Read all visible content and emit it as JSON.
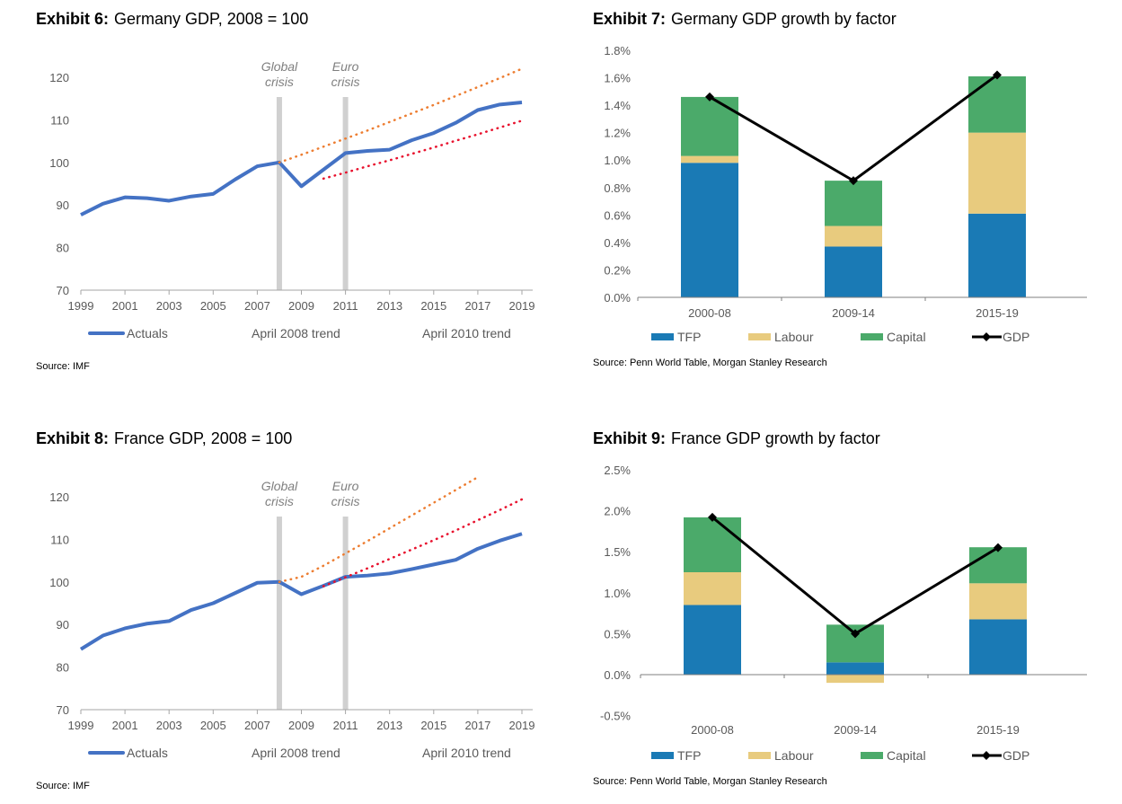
{
  "chart_data": [
    {
      "type": "line",
      "exhibit": "Exhibit 6:",
      "title": "Germany GDP, 2008 = 100",
      "ylim": [
        70,
        125
      ],
      "yticks": [
        70,
        80,
        90,
        100,
        110,
        120
      ],
      "xticks": [
        1999,
        2001,
        2003,
        2005,
        2007,
        2009,
        2011,
        2013,
        2015,
        2017,
        2019
      ],
      "annotations": [
        {
          "lines": [
            "Global",
            "crisis"
          ],
          "x": 2008
        },
        {
          "lines": [
            "Euro",
            "crisis"
          ],
          "x": 2011
        }
      ],
      "series": [
        {
          "name": "Actuals",
          "color": "#4472C4",
          "style": "solid",
          "x": [
            1999,
            2000,
            2001,
            2002,
            2003,
            2004,
            2005,
            2006,
            2007,
            2008,
            2009,
            2010,
            2011,
            2012,
            2013,
            2014,
            2015,
            2016,
            2017,
            2018,
            2019
          ],
          "y": [
            87.7,
            90.3,
            91.8,
            91.6,
            91.0,
            92.0,
            92.6,
            96.0,
            99.1,
            100,
            94.4,
            98.3,
            102.2,
            102.7,
            103.0,
            105.2,
            106.9,
            109.3,
            112.3,
            113.6,
            114.1
          ]
        },
        {
          "name": "April 2008 trend",
          "color": "#ED7D31",
          "style": "dotted",
          "x": [
            2008,
            2009,
            2010,
            2011,
            2012,
            2013,
            2014,
            2015,
            2016,
            2017,
            2018,
            2019
          ],
          "y": [
            100,
            101.8,
            103.7,
            105.6,
            107.5,
            109.5,
            111.5,
            113.5,
            115.6,
            117.7,
            119.8,
            122.0
          ]
        },
        {
          "name": "April 2010 trend",
          "color": "#E8112D",
          "style": "dotted",
          "x": [
            2010,
            2011,
            2012,
            2013,
            2014,
            2015,
            2016,
            2017,
            2018,
            2019
          ],
          "y": [
            96.2,
            97.6,
            99.1,
            100.5,
            102.0,
            103.5,
            105.1,
            106.6,
            108.2,
            109.8
          ]
        }
      ],
      "source": "Source: IMF"
    },
    {
      "type": "bar",
      "stacked": true,
      "exhibit": "Exhibit 7:",
      "title": "Germany GDP growth by factor",
      "ylim": [
        0,
        1.8
      ],
      "yticks": [
        0,
        0.2,
        0.4,
        0.6,
        0.8,
        1.0,
        1.2,
        1.4,
        1.6,
        1.8
      ],
      "ytick_decimals": 1,
      "categories": [
        "2000-08",
        "2009-14",
        "2015-19"
      ],
      "series": [
        {
          "name": "TFP",
          "color": "#1A7AB5",
          "values": [
            0.98,
            0.37,
            0.61
          ]
        },
        {
          "name": "Labour",
          "color": "#E8CB7E",
          "values": [
            0.05,
            0.15,
            0.59
          ]
        },
        {
          "name": "Capital",
          "color": "#4BAA6A",
          "values": [
            0.43,
            0.33,
            0.41
          ]
        }
      ],
      "line": {
        "name": "GDP",
        "color": "#000000",
        "values": [
          1.46,
          0.85,
          1.62
        ]
      },
      "source": "Source: Penn World Table, Morgan Stanley Research"
    },
    {
      "type": "line",
      "exhibit": "Exhibit 8:",
      "title": "France GDP, 2008 = 100",
      "ylim": [
        70,
        125
      ],
      "yticks": [
        70,
        80,
        90,
        100,
        110,
        120
      ],
      "xticks": [
        1999,
        2001,
        2003,
        2005,
        2007,
        2009,
        2011,
        2013,
        2015,
        2017,
        2019
      ],
      "annotations": [
        {
          "lines": [
            "Global",
            "crisis"
          ],
          "x": 2008
        },
        {
          "lines": [
            "Euro",
            "crisis"
          ],
          "x": 2011
        }
      ],
      "series": [
        {
          "name": "Actuals",
          "color": "#4472C4",
          "style": "solid",
          "x": [
            1999,
            2000,
            2001,
            2002,
            2003,
            2004,
            2005,
            2006,
            2007,
            2008,
            2009,
            2010,
            2011,
            2012,
            2013,
            2014,
            2015,
            2016,
            2017,
            2018,
            2019
          ],
          "y": [
            84.2,
            87.4,
            89.1,
            90.2,
            90.8,
            93.4,
            95.0,
            97.4,
            99.8,
            100,
            97.1,
            99.1,
            101.2,
            101.5,
            102.0,
            103.0,
            104.1,
            105.2,
            107.8,
            109.7,
            111.3
          ]
        },
        {
          "name": "April 2008 trend",
          "color": "#ED7D31",
          "style": "dotted",
          "x": [
            2008,
            2009,
            2010,
            2011,
            2012,
            2013,
            2014,
            2015,
            2016,
            2017
          ],
          "y": [
            100,
            101.2,
            103.8,
            106.7,
            109.6,
            112.6,
            115.6,
            118.6,
            121.6,
            124.6
          ]
        },
        {
          "name": "April 2010 trend",
          "color": "#E8112D",
          "style": "dotted",
          "x": [
            2010,
            2011,
            2012,
            2013,
            2014,
            2015,
            2016,
            2017,
            2018,
            2019
          ],
          "y": [
            99.0,
            101.1,
            103.2,
            105.4,
            107.6,
            109.8,
            112.1,
            114.5,
            116.9,
            119.4
          ]
        }
      ],
      "source": "Source: IMF"
    },
    {
      "type": "bar",
      "stacked": true,
      "exhibit": "Exhibit 9:",
      "title": "France GDP growth by factor",
      "ylim": [
        -0.5,
        2.5
      ],
      "yticks": [
        -0.5,
        0,
        0.5,
        1.0,
        1.5,
        2.0,
        2.5
      ],
      "ytick_decimals": 1,
      "categories": [
        "2000-08",
        "2009-14",
        "2015-19"
      ],
      "series": [
        {
          "name": "TFP",
          "color": "#1A7AB5",
          "values": [
            0.85,
            0.15,
            0.675
          ]
        },
        {
          "name": "Labour",
          "color": "#E8CB7E",
          "values": [
            0.4,
            -0.1,
            0.44
          ]
        },
        {
          "name": "Capital",
          "color": "#4BAA6A",
          "values": [
            0.67,
            0.46,
            0.44
          ]
        }
      ],
      "line": {
        "name": "GDP",
        "color": "#000000",
        "values": [
          1.92,
          0.5,
          1.55
        ]
      },
      "source": "Source: Penn World Table, Morgan Stanley Research"
    }
  ]
}
